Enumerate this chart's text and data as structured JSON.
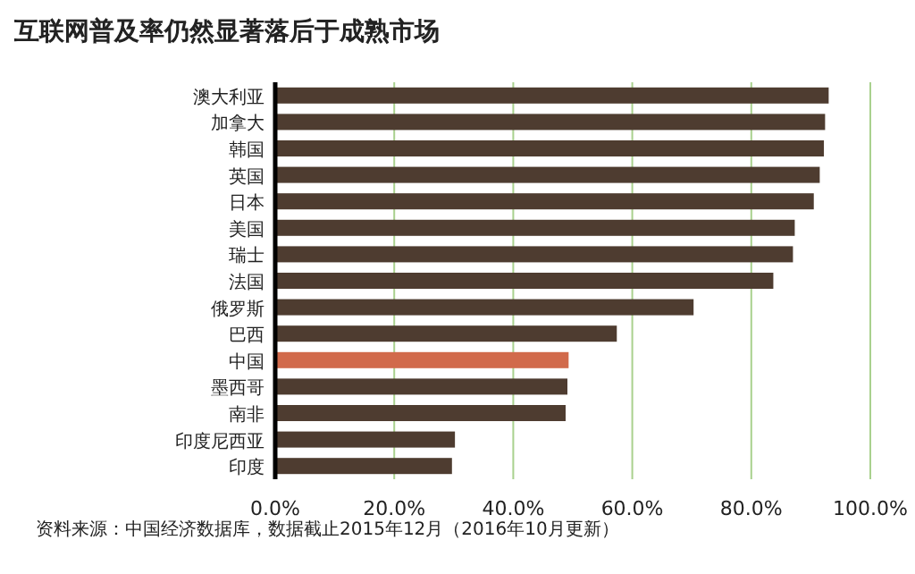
{
  "chart_data": {
    "type": "bar",
    "orientation": "horizontal",
    "title": "互联网普及率仍然显著落后于成熟市场",
    "categories": [
      "澳大利亚",
      "加拿大",
      "韩国",
      "英国",
      "日本",
      "美国",
      "瑞士",
      "法国",
      "俄罗斯",
      "巴西",
      "中国",
      "墨西哥",
      "南非",
      "印度尼西亚",
      "印度"
    ],
    "values": [
      93.0,
      92.4,
      92.2,
      91.5,
      90.5,
      87.3,
      87.0,
      83.7,
      70.3,
      57.4,
      49.3,
      49.1,
      48.8,
      30.2,
      29.7
    ],
    "colors": [
      "#4e3c30",
      "#4e3c30",
      "#4e3c30",
      "#4e3c30",
      "#4e3c30",
      "#4e3c30",
      "#4e3c30",
      "#4e3c30",
      "#4e3c30",
      "#4e3c30",
      "#d16a4b",
      "#4e3c30",
      "#4e3c30",
      "#4e3c30",
      "#4e3c30"
    ],
    "xlim": [
      0,
      100
    ],
    "xticks": [
      {
        "value": 0,
        "label": "0.0%"
      },
      {
        "value": 20,
        "label": "20.0%"
      },
      {
        "value": 40,
        "label": "40.0%"
      },
      {
        "value": 60,
        "label": "60.0%"
      },
      {
        "value": 80,
        "label": "80.0%"
      },
      {
        "value": 100,
        "label": "100.0%"
      }
    ],
    "grid": "x",
    "annotations": [
      "资料来源：中国经济数据库，数据截止2015年12月（2016年10月更新）"
    ]
  }
}
